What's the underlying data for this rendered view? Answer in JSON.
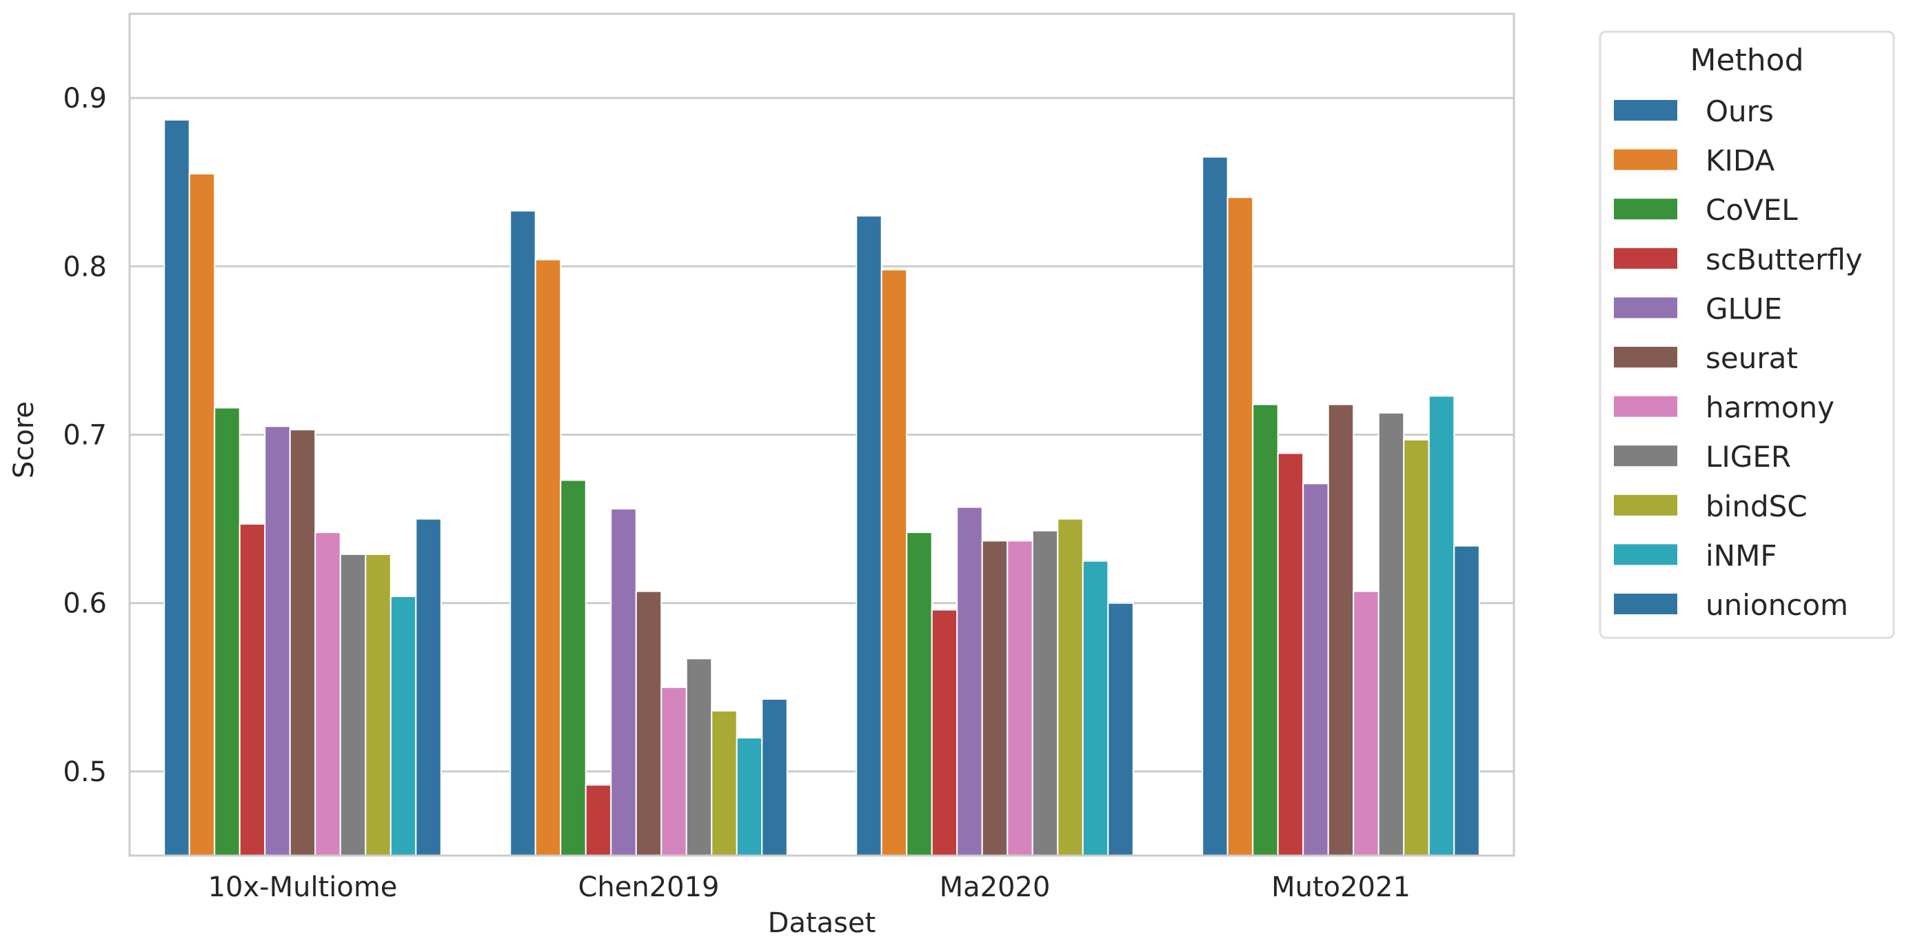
{
  "chart_data": {
    "type": "bar",
    "title": "",
    "xlabel": "Dataset",
    "ylabel": "Score",
    "ylim": [
      0.45,
      0.95
    ],
    "yticks": [
      0.5,
      0.6,
      0.7,
      0.8,
      0.9
    ],
    "ytick_labels": [
      "0.5",
      "0.6",
      "0.7",
      "0.8",
      "0.9"
    ],
    "grid": true,
    "categories": [
      "10x-Multiome",
      "Chen2019",
      "Ma2020",
      "Muto2021"
    ],
    "legend": {
      "title": "Method",
      "placement": "outside-right"
    },
    "series": [
      {
        "name": "Ours",
        "color": "#3274a1",
        "values": [
          0.887,
          0.833,
          0.83,
          0.865
        ]
      },
      {
        "name": "KIDA",
        "color": "#e1812c",
        "values": [
          0.855,
          0.804,
          0.798,
          0.841
        ]
      },
      {
        "name": "CoVEL",
        "color": "#3a923a",
        "values": [
          0.716,
          0.673,
          0.642,
          0.718
        ]
      },
      {
        "name": "scButterfly",
        "color": "#c03d3e",
        "values": [
          0.647,
          0.492,
          0.596,
          0.689
        ]
      },
      {
        "name": "GLUE",
        "color": "#9372b2",
        "values": [
          0.705,
          0.656,
          0.657,
          0.671
        ]
      },
      {
        "name": "seurat",
        "color": "#845b53",
        "values": [
          0.703,
          0.607,
          0.637,
          0.718
        ]
      },
      {
        "name": "harmony",
        "color": "#d684bd",
        "values": [
          0.642,
          0.55,
          0.637,
          0.607
        ]
      },
      {
        "name": "LIGER",
        "color": "#7f7f7f",
        "values": [
          0.629,
          0.567,
          0.643,
          0.713
        ]
      },
      {
        "name": "bindSC",
        "color": "#a9aa35",
        "values": [
          0.629,
          0.536,
          0.65,
          0.697
        ]
      },
      {
        "name": "iNMF",
        "color": "#2ea8b9",
        "values": [
          0.604,
          0.52,
          0.625,
          0.723
        ]
      },
      {
        "name": "unioncom",
        "color": "#3274a1",
        "values": [
          0.65,
          0.543,
          0.6,
          0.634
        ]
      }
    ]
  }
}
